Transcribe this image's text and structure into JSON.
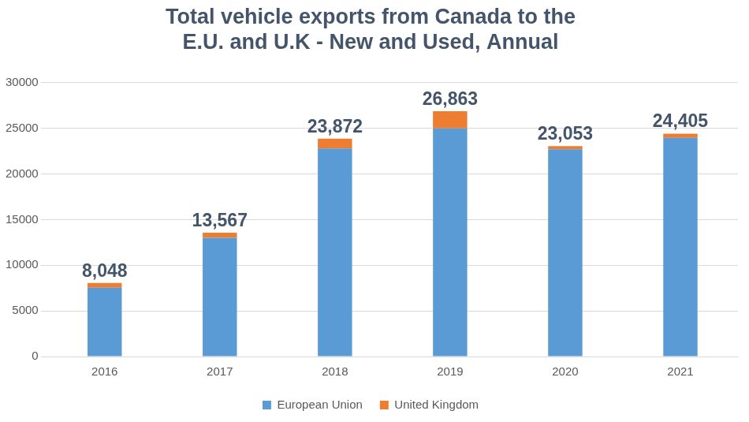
{
  "chart_data": {
    "type": "bar",
    "title": [
      "Total vehicle exports from Canada to the",
      "E.U. and U.K - New and Used, Annual"
    ],
    "categories": [
      "2016",
      "2017",
      "2018",
      "2019",
      "2020",
      "2021"
    ],
    "series": [
      {
        "name": "European Union",
        "color": "#5b9bd5",
        "values": [
          7548,
          13000,
          22800,
          25000,
          22700,
          23950
        ]
      },
      {
        "name": "United Kingdom",
        "color": "#ed7d31",
        "values": [
          500,
          567,
          1072,
          1863,
          353,
          455
        ]
      }
    ],
    "total_labels": [
      "8,048",
      "13,567",
      "23,872",
      "26,863",
      "23,053",
      "24,405"
    ],
    "stacked": true,
    "ylim": [
      0,
      30000
    ],
    "yticks": [
      0,
      5000,
      10000,
      15000,
      20000,
      25000,
      30000
    ],
    "grid": true,
    "legend": "bottom"
  }
}
